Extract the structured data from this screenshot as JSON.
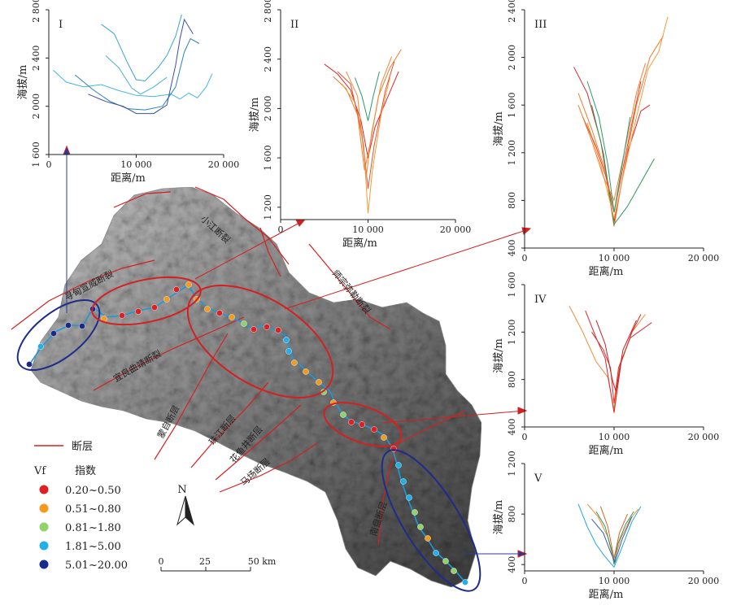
{
  "map": {
    "fault_labels": [
      "寻甸宣威断裂",
      "小江断裂",
      "宜良曲靖断裂",
      "师宗弥勒断裂",
      "蒙自断层",
      "珠江断层",
      "花鱼井断层",
      "马场断层",
      "南盘断层"
    ],
    "legend": {
      "fault_label": "断层",
      "vf_title_a": "Vf",
      "vf_title_b": "指数",
      "classes": [
        {
          "label": "0.20~0.50",
          "color": "#e02020"
        },
        {
          "label": "0.51~0.80",
          "color": "#f59a1a"
        },
        {
          "label": "0.81~1.80",
          "color": "#8fd36a"
        },
        {
          "label": "1.81~5.00",
          "color": "#22b0e8"
        },
        {
          "label": "5.01~20.00",
          "color": "#1a2a8c"
        }
      ]
    },
    "north_label": "N",
    "scale": {
      "ticks": [
        "0",
        "25",
        "50 km"
      ]
    },
    "colors": {
      "fault": "#d42020",
      "river": "#1a9ad8",
      "ellipse_red": "#d42020",
      "ellipse_blue": "#1e2c8a",
      "connector_red": "#d42020",
      "connector_blue": "#2a3a9a"
    }
  },
  "panels": [
    {
      "roman": "I",
      "yticks": [
        "1 600",
        "2 000",
        "2 400",
        "2 800"
      ],
      "ymin": 1600,
      "ymax": 2800,
      "xticks": [
        "0",
        "10 000",
        "20 000"
      ],
      "xlabel": "距离/m",
      "ylabel": "海拔/m",
      "series": [
        {
          "color": "#3fb8d8",
          "points": [
            [
              500,
              2300
            ],
            [
              2000,
              2200
            ],
            [
              4000,
              2160
            ],
            [
              6000,
              2180
            ],
            [
              8000,
              2130
            ],
            [
              10000,
              2090
            ],
            [
              12000,
              2080
            ],
            [
              14000,
              2100
            ],
            [
              15000,
              2060
            ],
            [
              16000,
              2110
            ],
            [
              17000,
              2070
            ],
            [
              18000,
              2160
            ],
            [
              18700,
              2270
            ]
          ]
        },
        {
          "color": "#2a80c0",
          "points": [
            [
              3000,
              2260
            ],
            [
              5000,
              2140
            ],
            [
              7000,
              2040
            ],
            [
              9000,
              1980
            ],
            [
              11000,
              1970
            ],
            [
              13000,
              2000
            ],
            [
              14500,
              2160
            ],
            [
              15500,
              2450
            ],
            [
              16200,
              2560
            ],
            [
              17200,
              2520
            ]
          ]
        },
        {
          "color": "#3a4ea8",
          "points": [
            [
              4500,
              2100
            ],
            [
              6500,
              2040
            ],
            [
              8500,
              2000
            ],
            [
              10000,
              1940
            ],
            [
              12000,
              1940
            ],
            [
              13500,
              2010
            ],
            [
              14500,
              2340
            ],
            [
              15000,
              2560
            ],
            [
              15500,
              2720
            ],
            [
              16500,
              2600
            ]
          ]
        },
        {
          "color": "#35a6cc",
          "points": [
            [
              6000,
              2680
            ],
            [
              7500,
              2600
            ],
            [
              9000,
              2360
            ],
            [
              10000,
              2220
            ],
            [
              11000,
              2210
            ],
            [
              12500,
              2320
            ],
            [
              13500,
              2420
            ],
            [
              14500,
              2580
            ],
            [
              15200,
              2760
            ]
          ]
        },
        {
          "color": "#4fb0d0",
          "points": [
            [
              6500,
              2420
            ],
            [
              8000,
              2320
            ],
            [
              9500,
              2150
            ],
            [
              10500,
              2100
            ],
            [
              12000,
              2160
            ],
            [
              13500,
              2240
            ]
          ]
        }
      ]
    },
    {
      "roman": "II",
      "yticks": [
        "1 200",
        "1 600",
        "2 000",
        "2 400",
        "2 800"
      ],
      "ymin": 1100,
      "ymax": 2800,
      "xticks": [
        "0",
        "10 000",
        "20 000"
      ],
      "xlabel": "距离/m",
      "ylabel": "海拔/m",
      "series": [
        {
          "color": "#d8282a",
          "points": [
            [
              5000,
              2360
            ],
            [
              6500,
              2280
            ],
            [
              8000,
              2150
            ],
            [
              9200,
              1900
            ],
            [
              10000,
              1600
            ],
            [
              10800,
              1850
            ],
            [
              12000,
              2050
            ],
            [
              13500,
              2300
            ]
          ]
        },
        {
          "color": "#ef7a2a",
          "points": [
            [
              6000,
              2260
            ],
            [
              7500,
              2160
            ],
            [
              8800,
              1950
            ],
            [
              9600,
              1500
            ],
            [
              10200,
              1700
            ],
            [
              11200,
              2100
            ],
            [
              12500,
              2330
            ],
            [
              13800,
              2480
            ]
          ]
        },
        {
          "color": "#f59a3a",
          "points": [
            [
              7000,
              2200
            ],
            [
              8500,
              2050
            ],
            [
              9500,
              1700
            ],
            [
              10000,
              1150
            ],
            [
              10500,
              1500
            ],
            [
              11500,
              1950
            ],
            [
              12500,
              2250
            ]
          ]
        },
        {
          "color": "#e55030",
          "points": [
            [
              6500,
              2300
            ],
            [
              8000,
              2200
            ],
            [
              9300,
              1800
            ],
            [
              10000,
              1350
            ],
            [
              10700,
              1700
            ],
            [
              12000,
              2150
            ],
            [
              13000,
              2380
            ]
          ]
        },
        {
          "color": "#2a9a6a",
          "points": [
            [
              8500,
              2250
            ],
            [
              9300,
              2100
            ],
            [
              10000,
              1900
            ],
            [
              10600,
              2100
            ],
            [
              11300,
              2300
            ]
          ]
        },
        {
          "color": "#f08a30",
          "points": [
            [
              7500,
              2300
            ],
            [
              8800,
              2100
            ],
            [
              9800,
              1450
            ],
            [
              10400,
              1800
            ],
            [
              11500,
              2200
            ],
            [
              12700,
              2420
            ]
          ]
        }
      ]
    },
    {
      "roman": "III",
      "yticks": [
        "400",
        "800",
        "1 200",
        "1 600",
        "2 000",
        "2 400"
      ],
      "ymin": 400,
      "ymax": 2400,
      "xticks": [
        "0",
        "10 000",
        "20 000"
      ],
      "xlabel": "距离/m",
      "ylabel": "海拔/m",
      "series": [
        {
          "color": "#d8282a",
          "points": [
            [
              5500,
              1920
            ],
            [
              7000,
              1700
            ],
            [
              8500,
              1300
            ],
            [
              10000,
              620
            ],
            [
              11500,
              1200
            ],
            [
              13000,
              1550
            ],
            [
              14000,
              1600
            ]
          ]
        },
        {
          "color": "#ef7a2a",
          "points": [
            [
              6000,
              1700
            ],
            [
              7500,
              1400
            ],
            [
              9000,
              1050
            ],
            [
              10000,
              580
            ],
            [
              11200,
              1100
            ],
            [
              12500,
              1600
            ],
            [
              14000,
              2000
            ],
            [
              15500,
              2180
            ]
          ]
        },
        {
          "color": "#2a9a5a",
          "points": [
            [
              7500,
              1600
            ],
            [
              8800,
              1200
            ],
            [
              10000,
              600
            ],
            [
              11500,
              750
            ],
            [
              13000,
              950
            ],
            [
              14500,
              1150
            ]
          ]
        },
        {
          "color": "#f59a3a",
          "points": [
            [
              7000,
              1450
            ],
            [
              8500,
              1100
            ],
            [
              10000,
              650
            ],
            [
              11000,
              1000
            ],
            [
              12500,
              1500
            ],
            [
              13800,
              1900
            ],
            [
              15000,
              2050
            ],
            [
              16000,
              2340
            ]
          ]
        },
        {
          "color": "#e5402a",
          "points": [
            [
              6500,
              1500
            ],
            [
              8000,
              1250
            ],
            [
              9300,
              950
            ],
            [
              10000,
              700
            ],
            [
              10800,
              1000
            ],
            [
              12000,
              1450
            ],
            [
              13000,
              1800
            ]
          ]
        },
        {
          "color": "#f08030",
          "points": [
            [
              6000,
              1600
            ],
            [
              7500,
              1300
            ],
            [
              8800,
              1000
            ],
            [
              10000,
              800
            ],
            [
              11000,
              1150
            ],
            [
              12500,
              1700
            ],
            [
              13500,
              1950
            ]
          ]
        },
        {
          "color": "#2e9a6a",
          "points": [
            [
              7000,
              1800
            ],
            [
              8300,
              1500
            ],
            [
              9300,
              1100
            ],
            [
              10000,
              700
            ],
            [
              10800,
              1050
            ],
            [
              11800,
              1500
            ]
          ]
        }
      ]
    },
    {
      "roman": "IV",
      "yticks": [
        "400",
        "800",
        "1 200",
        "1 600"
      ],
      "ymin": 400,
      "ymax": 1600,
      "xticks": [
        "0",
        "10 000",
        "20 000"
      ],
      "xlabel": "距离/m",
      "ylabel": "海拔/m",
      "series": [
        {
          "color": "#f08a30",
          "points": [
            [
              5000,
              1420
            ],
            [
              6500,
              1200
            ],
            [
              8000,
              950
            ],
            [
              9300,
              820
            ],
            [
              10000,
              550
            ],
            [
              10600,
              900
            ],
            [
              12000,
              1200
            ],
            [
              13500,
              1350
            ]
          ]
        },
        {
          "color": "#d8282a",
          "points": [
            [
              6800,
              1380
            ],
            [
              8000,
              1150
            ],
            [
              9000,
              980
            ],
            [
              10000,
              520
            ],
            [
              10800,
              950
            ],
            [
              12000,
              1200
            ],
            [
              13000,
              1350
            ]
          ]
        },
        {
          "color": "#e03030",
          "points": [
            [
              7500,
              1200
            ],
            [
              8800,
              1050
            ],
            [
              9600,
              900
            ],
            [
              10000,
              600
            ],
            [
              10500,
              900
            ],
            [
              11800,
              1150
            ],
            [
              14200,
              1280
            ]
          ]
        },
        {
          "color": "#c82028",
          "points": [
            [
              8000,
              1300
            ],
            [
              9000,
              1100
            ],
            [
              9800,
              800
            ],
            [
              10200,
              700
            ],
            [
              11000,
              1050
            ],
            [
              12500,
              1300
            ]
          ]
        }
      ]
    },
    {
      "roman": "V",
      "yticks": [
        "400",
        "800",
        "1 200"
      ],
      "ymin": 350,
      "ymax": 1200,
      "xticks": [
        "0",
        "10 000",
        "20 000"
      ],
      "xlabel": "距离/m",
      "ylabel": "海拔/m",
      "series": [
        {
          "color": "#22a8d8",
          "points": [
            [
              6000,
              880
            ],
            [
              7000,
              700
            ],
            [
              8000,
              560
            ],
            [
              8800,
              480
            ],
            [
              9500,
              420
            ],
            [
              10000,
              380
            ],
            [
              10800,
              520
            ],
            [
              12000,
              740
            ],
            [
              13000,
              860
            ]
          ]
        },
        {
          "color": "#f08a30",
          "points": [
            [
              7000,
              880
            ],
            [
              8200,
              780
            ],
            [
              9300,
              620
            ],
            [
              10000,
              420
            ],
            [
              10700,
              600
            ],
            [
              11800,
              760
            ],
            [
              12700,
              840
            ]
          ]
        },
        {
          "color": "#2a9a6a",
          "points": [
            [
              8000,
              820
            ],
            [
              9000,
              700
            ],
            [
              9700,
              520
            ],
            [
              10000,
              400
            ],
            [
              10400,
              560
            ],
            [
              11300,
              720
            ],
            [
              12200,
              820
            ]
          ]
        },
        {
          "color": "#3a5aa8",
          "points": [
            [
              7500,
              760
            ],
            [
              8800,
              650
            ],
            [
              9600,
              500
            ],
            [
              10100,
              420
            ],
            [
              10900,
              600
            ],
            [
              12000,
              780
            ]
          ]
        },
        {
          "color": "#d8602a",
          "points": [
            [
              8500,
              860
            ],
            [
              9300,
              700
            ],
            [
              10000,
              450
            ],
            [
              10600,
              650
            ],
            [
              11500,
              800
            ]
          ]
        }
      ]
    }
  ]
}
